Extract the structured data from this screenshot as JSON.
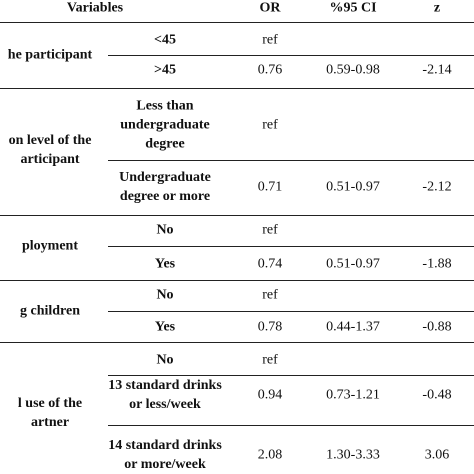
{
  "table": {
    "header": [
      "Variables",
      "OR",
      "%95 CI",
      "z"
    ],
    "groups": [
      {
        "label": [
          "he participant"
        ],
        "rows": [
          {
            "level": [
              "<45"
            ],
            "or": "ref",
            "ci": null,
            "z": null
          },
          {
            "level": [
              ">45"
            ],
            "or": "0.76",
            "ci": "0.59-0.98",
            "z": "-2.14"
          }
        ]
      },
      {
        "label": [
          "on level of the",
          "articipant"
        ],
        "rows": [
          {
            "level": [
              "Less than",
              "undergraduate",
              "degree"
            ],
            "or": "ref",
            "ci": null,
            "z": null
          },
          {
            "level": [
              "Undergraduate",
              "degree or more"
            ],
            "or": "0.71",
            "ci": "0.51-0.97",
            "z": "-2.12"
          }
        ]
      },
      {
        "label": [
          "ployment"
        ],
        "rows": [
          {
            "level": [
              "No"
            ],
            "or": "ref",
            "ci": null,
            "z": null
          },
          {
            "level": [
              "Yes"
            ],
            "or": "0.74",
            "ci": "0.51-0.97",
            "z": "-1.88"
          }
        ]
      },
      {
        "label": [
          "g children"
        ],
        "rows": [
          {
            "level": [
              "No"
            ],
            "or": "ref",
            "ci": null,
            "z": null
          },
          {
            "level": [
              "Yes"
            ],
            "or": "0.78",
            "ci": "0.44-1.37",
            "z": "-0.88"
          }
        ]
      },
      {
        "label": [
          "l use of the",
          "artner"
        ],
        "rows": [
          {
            "level": [
              "No"
            ],
            "or": "ref",
            "ci": null,
            "z": null
          },
          {
            "level": [
              "13 standard drinks",
              "or less/week"
            ],
            "or": "0.94",
            "ci": "0.73-1.21",
            "z": "-0.48"
          },
          {
            "level": [
              "14 standard drinks",
              "or more/week"
            ],
            "or": "2.08",
            "ci": "1.30-3.33",
            "z": "3.06"
          }
        ]
      }
    ]
  }
}
